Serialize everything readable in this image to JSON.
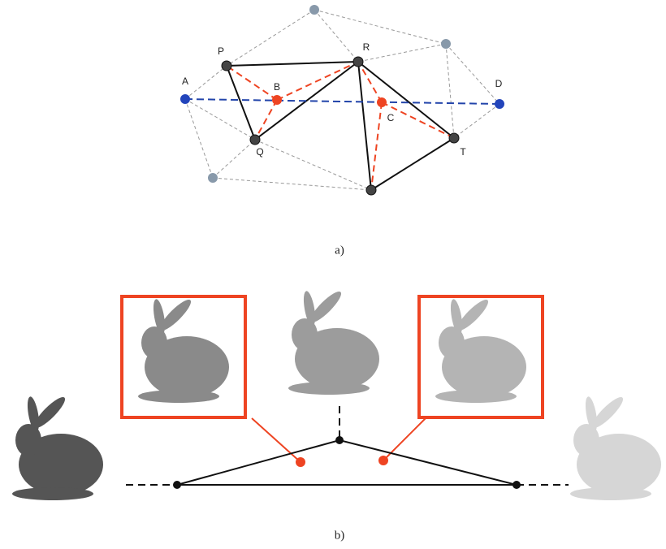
{
  "figure_a": {
    "nodes": [
      {
        "label": "P"
      },
      {
        "label": "R"
      },
      {
        "label": "A"
      },
      {
        "label": "B"
      },
      {
        "label": "C"
      },
      {
        "label": "D"
      },
      {
        "label": "Q"
      },
      {
        "label": "T"
      }
    ],
    "caption": "a)"
  },
  "figure_b": {
    "caption": "b)"
  }
}
